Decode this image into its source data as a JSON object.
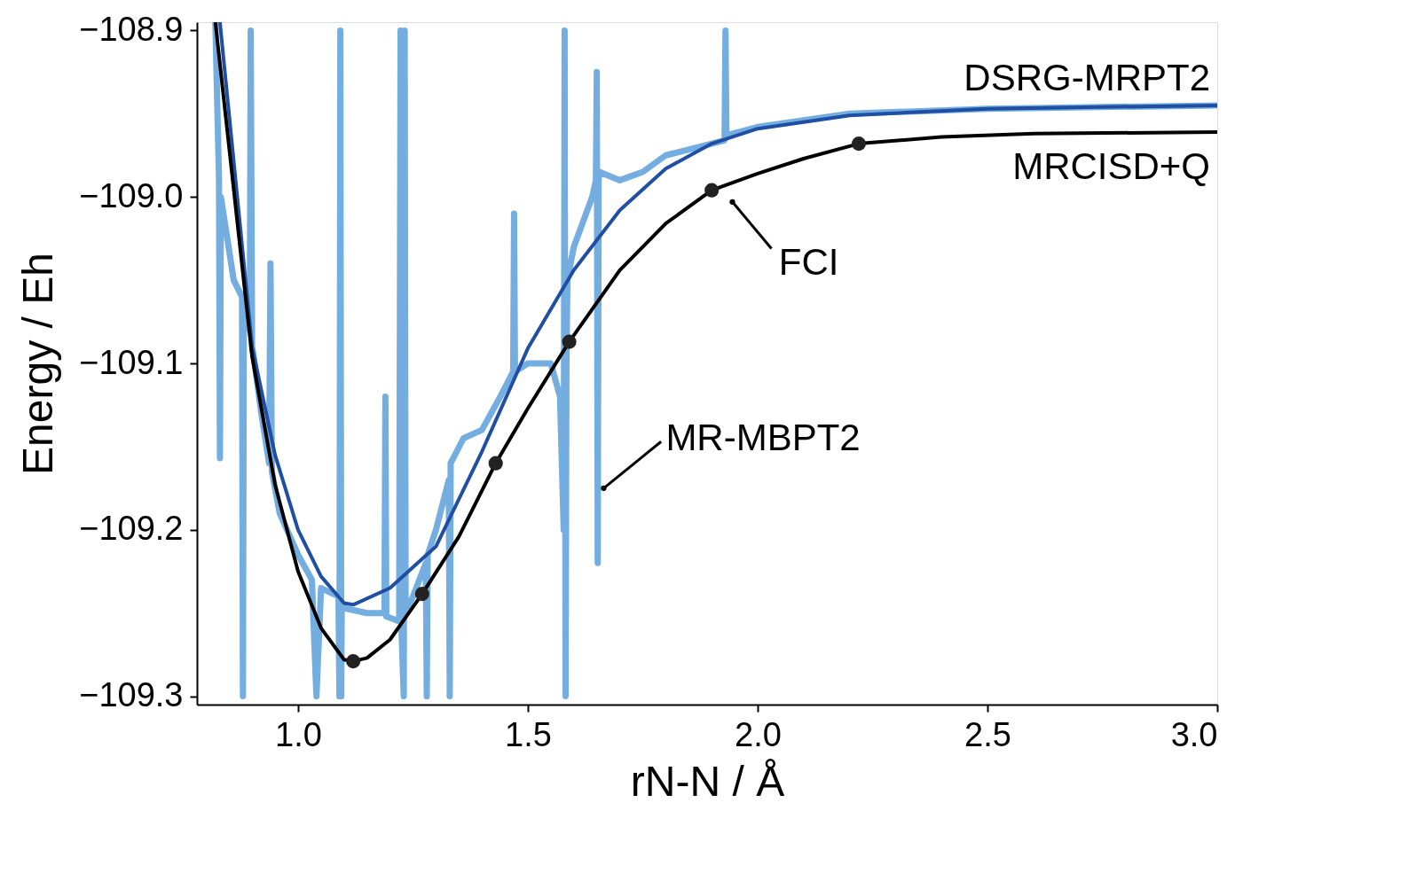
{
  "chart_data": {
    "type": "line",
    "xlabel": "rN-N / Å",
    "ylabel": "Energy / Eh",
    "xlim": [
      0.78,
      3.0
    ],
    "ylim": [
      -109.305,
      -108.895
    ],
    "xticks": [
      {
        "value": 1.0,
        "label": "1.0"
      },
      {
        "value": 1.5,
        "label": "1.5"
      },
      {
        "value": 2.0,
        "label": "2.0"
      },
      {
        "value": 2.5,
        "label": "2.5"
      },
      {
        "value": 3.0,
        "label": "3.0"
      }
    ],
    "yticks": [
      {
        "value": -108.9,
        "label": "−108.9"
      },
      {
        "value": -109.0,
        "label": "−109.0"
      },
      {
        "value": -109.1,
        "label": "−109.1"
      },
      {
        "value": -109.2,
        "label": "−109.2"
      },
      {
        "value": -109.3,
        "label": "−109.3"
      }
    ],
    "grid": false,
    "legend": false,
    "series": [
      {
        "type": "line",
        "color": "#74aee0",
        "x": [
          0.82,
          0.828,
          0.83,
          0.832,
          0.86,
          0.878,
          0.88,
          0.882,
          0.895,
          0.897,
          0.9,
          0.903,
          0.92,
          0.937,
          0.94,
          0.943,
          0.96,
          1.0,
          1.03,
          1.04,
          1.05,
          1.088,
          1.09,
          1.092,
          1.094,
          1.095,
          1.1,
          1.15,
          1.188,
          1.19,
          1.192,
          1.22,
          1.223,
          1.225,
          1.23,
          1.232,
          1.234,
          1.25,
          1.278,
          1.28,
          1.282,
          1.3,
          1.328,
          1.33,
          1.332,
          1.36,
          1.4,
          1.44,
          1.468,
          1.47,
          1.472,
          1.5,
          1.55,
          1.57,
          1.578,
          1.58,
          1.582,
          1.584,
          1.586,
          1.6,
          1.64,
          1.648,
          1.65,
          1.652,
          1.654,
          1.656,
          1.7,
          1.75,
          1.8,
          1.9,
          1.928,
          1.93,
          1.932,
          2.0,
          2.2,
          2.5,
          3.0
        ],
        "values": [
          -108.895,
          -108.99,
          -109.157,
          -109.0,
          -109.05,
          -109.06,
          -109.3,
          -109.07,
          -109.08,
          -108.9,
          -109.09,
          -109.095,
          -109.13,
          -109.16,
          -109.04,
          -109.165,
          -109.19,
          -109.215,
          -109.23,
          -109.3,
          -109.235,
          -109.24,
          -109.3,
          -108.9,
          -109.3,
          -109.243,
          -109.247,
          -109.25,
          -109.25,
          -109.12,
          -109.252,
          -109.255,
          -108.9,
          -109.26,
          -109.3,
          -108.9,
          -109.25,
          -109.24,
          -109.22,
          -109.3,
          -109.215,
          -109.2,
          -109.17,
          -109.3,
          -109.16,
          -109.145,
          -109.14,
          -109.12,
          -109.105,
          -109.01,
          -109.105,
          -109.1,
          -109.1,
          -109.12,
          -109.2,
          -108.9,
          -109.3,
          -109.1,
          -109.05,
          -109.03,
          -109.0,
          -108.99,
          -108.925,
          -109.22,
          -108.99,
          -108.985,
          -108.99,
          -108.985,
          -108.975,
          -108.968,
          -108.966,
          -108.9,
          -108.963,
          -108.958,
          -108.95,
          -108.947,
          -108.945
        ]
      },
      {
        "type": "line",
        "name": "DSRG-MRPT2",
        "color": "#1f4ea3",
        "x": [
          0.83,
          0.9,
          0.95,
          1.0,
          1.05,
          1.1,
          1.12,
          1.2,
          1.3,
          1.4,
          1.5,
          1.6,
          1.7,
          1.8,
          1.9,
          2.0,
          2.2,
          2.5,
          3.0
        ],
        "values": [
          -108.895,
          -109.09,
          -109.155,
          -109.2,
          -109.228,
          -109.244,
          -109.245,
          -109.235,
          -109.21,
          -109.153,
          -109.091,
          -109.044,
          -109.008,
          -108.983,
          -108.968,
          -108.959,
          -108.951,
          -108.947,
          -108.945
        ]
      },
      {
        "type": "line",
        "name": "MRCISD+Q",
        "color": "#000000",
        "x": [
          0.82,
          0.9,
          0.95,
          1.0,
          1.05,
          1.1,
          1.12,
          1.15,
          1.2,
          1.27,
          1.35,
          1.43,
          1.5,
          1.59,
          1.7,
          1.8,
          1.9,
          2.0,
          2.1,
          2.22,
          2.4,
          2.6,
          3.0
        ],
        "values": [
          -108.895,
          -109.096,
          -109.173,
          -109.225,
          -109.259,
          -109.278,
          -109.279,
          -109.277,
          -109.266,
          -109.2385,
          -109.204,
          -109.16,
          -109.127,
          -109.087,
          -109.044,
          -109.016,
          -108.996,
          -108.986,
          -108.977,
          -108.968,
          -108.964,
          -108.962,
          -108.961
        ]
      },
      {
        "type": "scatter",
        "color": "#222222",
        "marker": "circle",
        "x": [
          1.12,
          1.27,
          1.43,
          1.59,
          1.9,
          2.22
        ],
        "values": [
          -109.279,
          -109.2385,
          -109.16,
          -109.087,
          -108.996,
          -108.968
        ]
      }
    ],
    "annotations": [
      {
        "text": "FCI",
        "x": 1.9,
        "y": -108.996
      },
      {
        "text": "MR-MBPT2",
        "x": 1.65,
        "y": -109.175
      }
    ]
  }
}
